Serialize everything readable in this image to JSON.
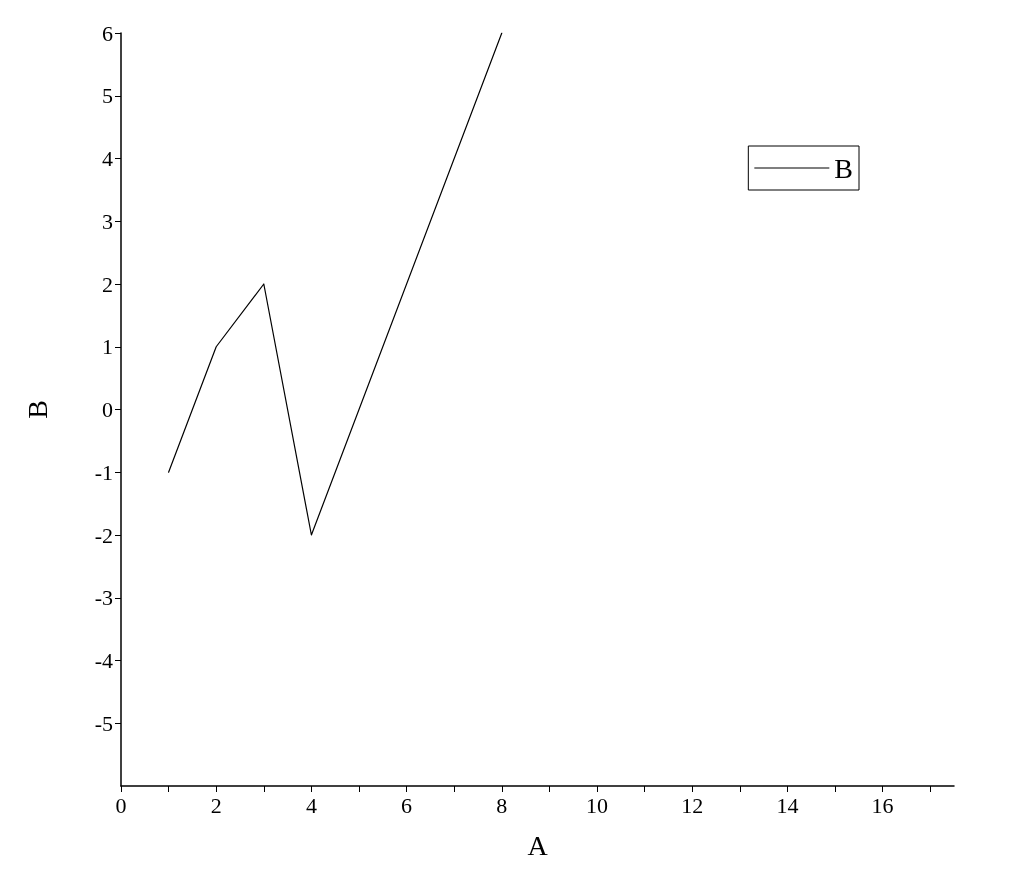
{
  "chart_data": {
    "type": "line",
    "xlabel": "A",
    "ylabel": "B",
    "x": [
      1,
      2,
      3,
      4,
      8
    ],
    "series": [
      {
        "name": "B",
        "color": "#000000",
        "values": [
          -1,
          1,
          2,
          -2,
          6
        ]
      }
    ],
    "xlim": [
      0,
      17.5
    ],
    "xticks": [
      0,
      {
        "value": 1,
        "label": null
      },
      2,
      {
        "value": 3,
        "label": null
      },
      4,
      {
        "value": 5,
        "label": null
      },
      6,
      {
        "value": 7,
        "label": null
      },
      8,
      {
        "value": 9,
        "label": null
      },
      10,
      {
        "value": 11,
        "label": null
      },
      12,
      {
        "value": 13,
        "label": null
      },
      14,
      {
        "value": 15,
        "label": null
      },
      16,
      {
        "value": 17,
        "label": null
      }
    ],
    "ylim": [
      -6,
      6
    ],
    "yticks": [
      -5,
      -4,
      -3,
      -2,
      -1,
      0,
      1,
      2,
      3,
      4,
      5,
      6
    ],
    "grid": false,
    "legend": "top right",
    "marker": "none",
    "line_style": "solid"
  }
}
